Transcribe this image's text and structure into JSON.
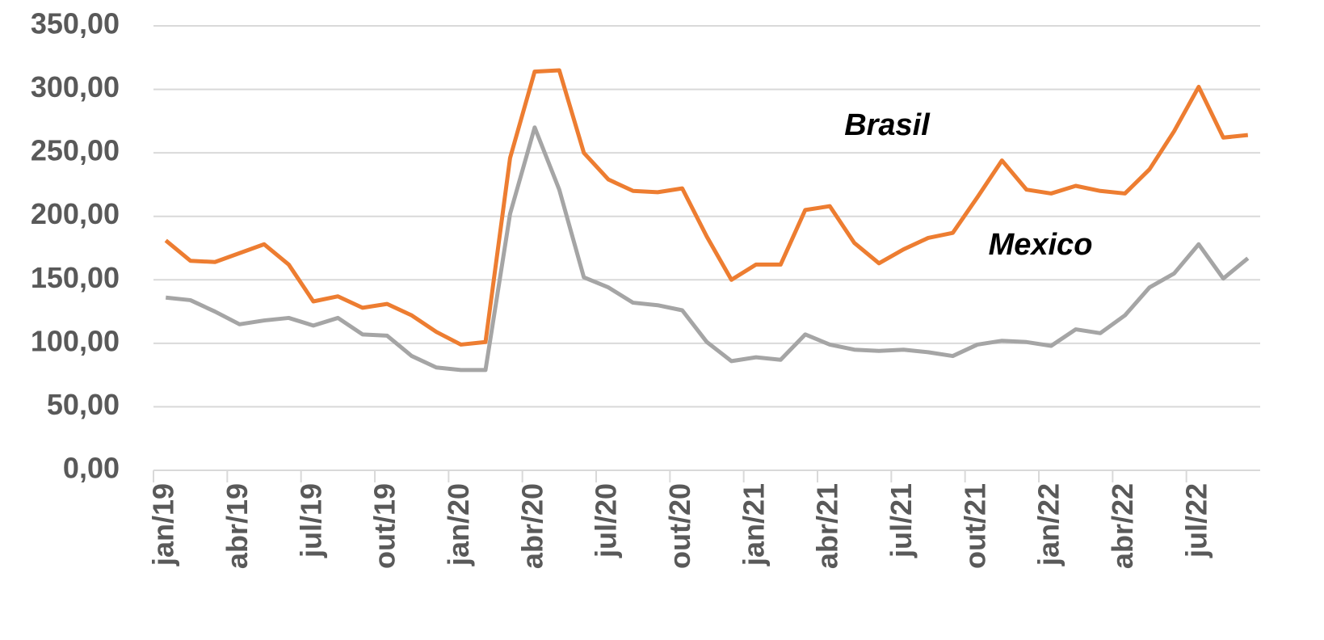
{
  "chart_data": {
    "type": "line",
    "categories": [
      "jan/19",
      null,
      null,
      "abr/19",
      null,
      null,
      "jul/19",
      null,
      null,
      "out/19",
      null,
      null,
      "jan/20",
      null,
      null,
      "abr/20",
      null,
      null,
      "jul/20",
      null,
      null,
      "out/20",
      null,
      null,
      "jan/21",
      null,
      null,
      "abr/21",
      null,
      null,
      "jul/21",
      null,
      null,
      "out/21",
      null,
      null,
      "jan/22",
      null,
      null,
      "abr/22",
      null,
      null,
      "jul/22",
      null,
      null
    ],
    "series": [
      {
        "name": "Brasil",
        "color": "#ed7d31",
        "values": [
          181,
          165,
          164,
          171,
          178,
          162,
          133,
          137,
          128,
          131,
          122,
          109,
          99,
          101,
          246,
          314,
          315,
          250,
          229,
          220,
          219,
          222,
          184,
          150,
          162,
          162,
          205,
          208,
          179,
          163,
          174,
          183,
          187,
          215,
          244,
          221,
          218,
          224,
          220,
          218,
          237,
          267,
          302,
          262,
          264
        ]
      },
      {
        "name": "Mexico",
        "color": "#a5a5a5",
        "values": [
          136,
          134,
          125,
          115,
          118,
          120,
          114,
          120,
          107,
          106,
          90,
          81,
          79,
          79,
          202,
          270,
          221,
          152,
          144,
          132,
          130,
          126,
          101,
          86,
          89,
          87,
          107,
          99,
          95,
          94,
          95,
          93,
          90,
          99,
          102,
          101,
          98,
          111,
          108,
          122,
          144,
          155,
          178,
          151,
          167
        ]
      }
    ],
    "ylim": [
      0,
      350
    ],
    "yticks": [
      {
        "value": 0,
        "label": "0,00"
      },
      {
        "value": 50,
        "label": "50,00"
      },
      {
        "value": 100,
        "label": "100,00"
      },
      {
        "value": 150,
        "label": "150,00"
      },
      {
        "value": 200,
        "label": "200,00"
      },
      {
        "value": 250,
        "label": "250,00"
      },
      {
        "value": 300,
        "label": "300,00"
      },
      {
        "value": 350,
        "label": "350,00"
      }
    ],
    "grid": true
  }
}
